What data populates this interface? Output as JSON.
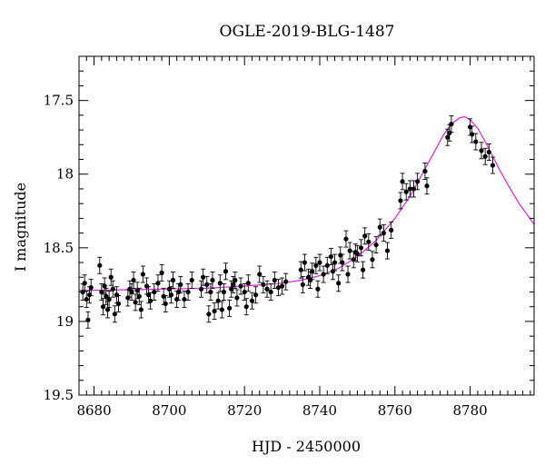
{
  "chart_data": {
    "type": "scatter",
    "title": "OGLE-2019-BLG-1487",
    "xlabel": "HJD - 2450000",
    "ylabel": "I magnitude",
    "xlim": [
      8676,
      8797
    ],
    "ylim": [
      19.5,
      17.2
    ],
    "y_inverted": true,
    "grid": false,
    "legend": "none",
    "x_ticks": [
      8680,
      8700,
      8720,
      8740,
      8760,
      8780
    ],
    "x_tick_labels": [
      "8680",
      "8700",
      "8720",
      "8740",
      "8760",
      "8780"
    ],
    "y_ticks": [
      17.5,
      18,
      18.5,
      19,
      19.5
    ],
    "y_tick_labels": [
      "17.5",
      "18",
      "18.5",
      "19",
      "19.5"
    ],
    "colors": {
      "points": "#000000",
      "model": "#e020e0"
    },
    "series": [
      {
        "kind": "points",
        "x": [
          8677,
          8677.5,
          8678,
          8678.4,
          8678.8,
          8679.2,
          8681.5,
          8682,
          8682.4,
          8682.8,
          8683.2,
          8683.6,
          8684,
          8684.5,
          8685,
          8685.5,
          8686,
          8686.5,
          8689,
          8689.5,
          8690,
          8690.5,
          8691,
          8691.5,
          8692,
          8692.5,
          8693,
          8694,
          8694.5,
          8695,
          8696,
          8697,
          8698,
          8698.5,
          8699,
          8700,
          8700.5,
          8701,
          8702,
          8702.5,
          8703,
          8704,
          8705,
          8706,
          8708.5,
          8709,
          8710,
          8710.5,
          8711,
          8711.5,
          8712,
          8713,
          8713.5,
          8714,
          8714.5,
          8715,
          8716,
          8716.5,
          8717,
          8717.5,
          8718,
          8719,
          8720,
          8720.5,
          8721,
          8722,
          8723,
          8724,
          8725,
          8726,
          8727,
          8728,
          8729,
          8730,
          8731,
          8735,
          8735.5,
          8736,
          8737,
          8737.5,
          8738,
          8739,
          8739.5,
          8740,
          8741,
          8742,
          8743,
          8743.5,
          8744,
          8745,
          8745.5,
          8746,
          8747,
          8747.5,
          8748,
          8749,
          8749.5,
          8750,
          8751,
          8751.5,
          8752,
          8753,
          8754,
          8755,
          8756,
          8757,
          8758,
          8759,
          8761.5,
          8762,
          8763,
          8764,
          8765,
          8766,
          8768,
          8768.5,
          8774,
          8774.5,
          8775,
          8780,
          8780.5,
          8781.5,
          8783,
          8784,
          8785,
          8786
        ],
        "y": [
          18.8,
          18.74,
          18.85,
          18.99,
          18.82,
          18.77,
          18.62,
          18.8,
          18.9,
          18.76,
          18.83,
          18.92,
          18.85,
          18.7,
          18.78,
          18.95,
          18.82,
          18.88,
          18.84,
          18.78,
          18.8,
          18.72,
          18.87,
          18.79,
          18.83,
          18.92,
          18.68,
          18.76,
          18.82,
          18.86,
          18.8,
          18.74,
          18.67,
          18.83,
          18.88,
          18.78,
          18.82,
          18.72,
          18.85,
          18.8,
          18.75,
          18.85,
          18.8,
          18.72,
          18.78,
          18.7,
          18.75,
          18.95,
          18.8,
          18.72,
          18.93,
          18.86,
          18.74,
          18.92,
          18.8,
          18.66,
          18.91,
          18.78,
          18.75,
          18.72,
          18.84,
          18.76,
          18.8,
          18.9,
          18.74,
          18.86,
          18.82,
          18.68,
          18.75,
          18.78,
          18.8,
          18.72,
          18.77,
          18.76,
          18.73,
          18.65,
          18.75,
          18.6,
          18.7,
          18.72,
          18.66,
          18.62,
          18.78,
          18.6,
          18.68,
          18.62,
          18.56,
          18.66,
          18.6,
          18.74,
          18.55,
          18.6,
          18.44,
          18.68,
          18.52,
          18.58,
          18.53,
          18.54,
          18.5,
          18.65,
          18.42,
          18.46,
          18.58,
          18.48,
          18.36,
          18.4,
          18.52,
          18.38,
          18.18,
          18.05,
          18.12,
          18.1,
          18.1,
          18.05,
          17.98,
          18.08,
          17.75,
          17.72,
          17.66,
          17.68,
          17.73,
          17.78,
          17.84,
          17.88,
          17.85,
          17.94
        ]
      },
      {
        "kind": "model",
        "x": [
          8676,
          8690,
          8700,
          8710,
          8720,
          8725,
          8730,
          8735,
          8740,
          8745,
          8750,
          8755,
          8760,
          8764,
          8767,
          8770,
          8773,
          8775,
          8777,
          8778.5,
          8780,
          8782,
          8784,
          8786,
          8788,
          8790,
          8793,
          8797
        ],
        "y": [
          18.79,
          18.785,
          18.78,
          18.775,
          18.76,
          18.75,
          18.74,
          18.72,
          18.69,
          18.64,
          18.56,
          18.45,
          18.3,
          18.15,
          18.01,
          17.87,
          17.73,
          17.66,
          17.62,
          17.61,
          17.63,
          17.69,
          17.78,
          17.88,
          17.98,
          18.07,
          18.2,
          18.34
        ]
      }
    ]
  }
}
